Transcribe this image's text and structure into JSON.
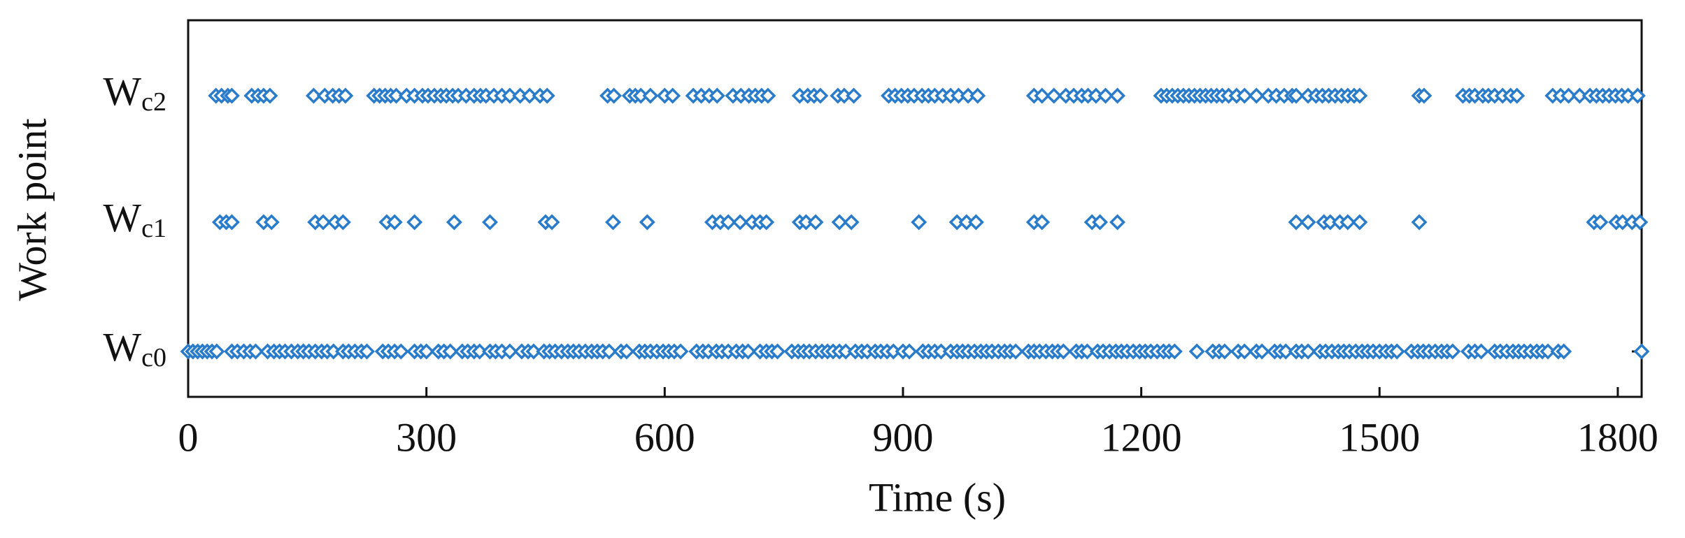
{
  "chart_data": {
    "type": "scatter",
    "x_label": "Time (s)",
    "y_label": "Work point",
    "color": "#2a7ccb",
    "xlim": [
      0,
      1830
    ],
    "xticks": [
      0,
      300,
      600,
      900,
      1200,
      1500,
      1800
    ],
    "y_categories": [
      "Wc0",
      "Wc1",
      "Wc2"
    ],
    "x_by_category": [
      [
        0,
        6,
        12,
        18,
        24,
        30,
        36,
        55,
        62,
        70,
        78,
        85,
        100,
        108,
        115,
        122,
        130,
        138,
        145,
        152,
        160,
        168,
        175,
        183,
        195,
        202,
        210,
        218,
        225,
        245,
        252,
        260,
        268,
        285,
        293,
        300,
        315,
        322,
        330,
        345,
        352,
        360,
        367,
        380,
        387,
        395,
        405,
        420,
        428,
        435,
        448,
        455,
        462,
        470,
        478,
        485,
        492,
        500,
        508,
        515,
        522,
        530,
        545,
        552,
        568,
        575,
        582,
        590,
        598,
        605,
        612,
        620,
        640,
        648,
        655,
        665,
        672,
        680,
        690,
        698,
        705,
        720,
        728,
        735,
        742,
        760,
        768,
        775,
        782,
        790,
        798,
        805,
        812,
        820,
        828,
        840,
        848,
        855,
        865,
        872,
        880,
        888,
        900,
        908,
        925,
        932,
        940,
        948,
        960,
        968,
        975,
        982,
        990,
        998,
        1005,
        1012,
        1020,
        1028,
        1035,
        1042,
        1058,
        1065,
        1072,
        1080,
        1088,
        1095,
        1102,
        1118,
        1125,
        1132,
        1145,
        1152,
        1160,
        1168,
        1175,
        1182,
        1190,
        1198,
        1205,
        1212,
        1220,
        1228,
        1235,
        1242,
        1270,
        1290,
        1298,
        1305,
        1322,
        1330,
        1345,
        1352,
        1368,
        1375,
        1382,
        1395,
        1402,
        1410,
        1425,
        1432,
        1440,
        1448,
        1455,
        1462,
        1470,
        1478,
        1485,
        1492,
        1500,
        1508,
        1515,
        1522,
        1540,
        1548,
        1555,
        1562,
        1570,
        1578,
        1585,
        1592,
        1612,
        1620,
        1628,
        1645,
        1652,
        1660,
        1668,
        1675,
        1682,
        1690,
        1698,
        1705,
        1712,
        1725,
        1732,
        1830
      ],
      [
        40,
        48,
        55,
        95,
        105,
        160,
        170,
        185,
        195,
        250,
        260,
        285,
        335,
        380,
        450,
        458,
        535,
        578,
        660,
        670,
        680,
        695,
        710,
        720,
        728,
        770,
        778,
        790,
        820,
        835,
        920,
        968,
        980,
        992,
        1065,
        1075,
        1138,
        1148,
        1170,
        1395,
        1410,
        1430,
        1438,
        1450,
        1460,
        1475,
        1550,
        1770,
        1778,
        1798,
        1806,
        1818,
        1828
      ],
      [
        35,
        42,
        50,
        55,
        80,
        88,
        95,
        103,
        158,
        172,
        182,
        190,
        198,
        234,
        241,
        248,
        255,
        262,
        275,
        285,
        295,
        302,
        310,
        318,
        325,
        333,
        340,
        350,
        360,
        368,
        375,
        385,
        395,
        405,
        418,
        430,
        443,
        452,
        528,
        536,
        556,
        563,
        570,
        582,
        600,
        610,
        636,
        646,
        656,
        666,
        686,
        696,
        706,
        714,
        722,
        730,
        770,
        780,
        788,
        796,
        818,
        826,
        838,
        882,
        890,
        898,
        906,
        914,
        924,
        932,
        940,
        950,
        960,
        970,
        982,
        994,
        1065,
        1075,
        1090,
        1105,
        1115,
        1125,
        1133,
        1143,
        1155,
        1170,
        1225,
        1232,
        1239,
        1246,
        1253,
        1260,
        1267,
        1274,
        1281,
        1288,
        1295,
        1302,
        1310,
        1320,
        1330,
        1345,
        1360,
        1370,
        1380,
        1390,
        1395,
        1410,
        1420,
        1428,
        1436,
        1444,
        1452,
        1460,
        1468,
        1475,
        1550,
        1556,
        1605,
        1613,
        1620,
        1630,
        1637,
        1645,
        1655,
        1665,
        1673,
        1718,
        1728,
        1738,
        1752,
        1765,
        1773,
        1781,
        1789,
        1797,
        1805,
        1813,
        1825
      ]
    ]
  }
}
